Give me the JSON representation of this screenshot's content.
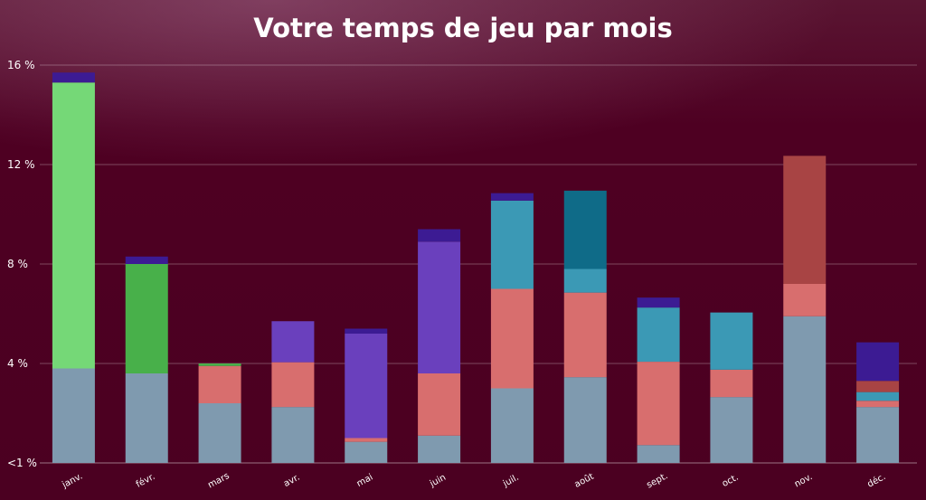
{
  "chart_data": {
    "type": "bar",
    "stacked": true,
    "title": "Votre temps de jeu par mois",
    "xlabel": "",
    "ylabel": "",
    "ylim": [
      0,
      16
    ],
    "y_ticks": [
      {
        "value": 0,
        "label": "<1 %"
      },
      {
        "value": 4,
        "label": "4 %"
      },
      {
        "value": 8,
        "label": "8 %"
      },
      {
        "value": 12,
        "label": "12 %"
      },
      {
        "value": 16,
        "label": "16 %"
      }
    ],
    "grid": true,
    "legend": "none",
    "categories": [
      "janv.",
      "févr.",
      "mars",
      "avr.",
      "mai",
      "juin",
      "juil.",
      "août",
      "sept.",
      "oct.",
      "nov.",
      "déc."
    ],
    "stacks": [
      [
        {
          "value": 3.8,
          "color": "#7f9aaf"
        },
        {
          "value": 11.5,
          "color": "#75d877"
        },
        {
          "value": 0.4,
          "color": "#3c1b93"
        }
      ],
      [
        {
          "value": 3.6,
          "color": "#7f9aaf"
        },
        {
          "value": 4.4,
          "color": "#48b04a"
        },
        {
          "value": 0.3,
          "color": "#3c1b93"
        }
      ],
      [
        {
          "value": 2.4,
          "color": "#7f9aaf"
        },
        {
          "value": 1.5,
          "color": "#d86e6e"
        },
        {
          "value": 0.1,
          "color": "#48b04a"
        }
      ],
      [
        {
          "value": 2.25,
          "color": "#7f9aaf"
        },
        {
          "value": 1.8,
          "color": "#d86e6e"
        },
        {
          "value": 1.65,
          "color": "#6a40bd"
        }
      ],
      [
        {
          "value": 0.85,
          "color": "#7f9aaf"
        },
        {
          "value": 0.15,
          "color": "#d86e6e"
        },
        {
          "value": 4.2,
          "color": "#6a40bd"
        },
        {
          "value": 0.2,
          "color": "#3c1b93"
        }
      ],
      [
        {
          "value": 1.1,
          "color": "#7f9aaf"
        },
        {
          "value": 2.5,
          "color": "#d86e6e"
        },
        {
          "value": 5.3,
          "color": "#6a40bd"
        },
        {
          "value": 0.5,
          "color": "#3c1b93"
        }
      ],
      [
        {
          "value": 3.0,
          "color": "#7f9aaf"
        },
        {
          "value": 4.0,
          "color": "#d86e6e"
        },
        {
          "value": 3.55,
          "color": "#3b99b5"
        },
        {
          "value": 0.3,
          "color": "#3c1b93"
        }
      ],
      [
        {
          "value": 3.45,
          "color": "#7f9aaf"
        },
        {
          "value": 3.4,
          "color": "#d86e6e"
        },
        {
          "value": 0.95,
          "color": "#3b99b5"
        },
        {
          "value": 3.15,
          "color": "#0f6b88"
        }
      ],
      [
        {
          "value": 0.72,
          "color": "#7f9aaf"
        },
        {
          "value": 3.35,
          "color": "#d86e6e"
        },
        {
          "value": 2.18,
          "color": "#3b99b5"
        },
        {
          "value": 0.4,
          "color": "#3c1b93"
        }
      ],
      [
        {
          "value": 2.65,
          "color": "#7f9aaf"
        },
        {
          "value": 1.1,
          "color": "#d86e6e"
        },
        {
          "value": 2.3,
          "color": "#3b99b5"
        }
      ],
      [
        {
          "value": 5.9,
          "color": "#7f9aaf"
        },
        {
          "value": 1.3,
          "color": "#d86e6e"
        },
        {
          "value": 5.15,
          "color": "#a84444"
        }
      ],
      [
        {
          "value": 2.25,
          "color": "#7f9aaf"
        },
        {
          "value": 0.25,
          "color": "#d86e6e"
        },
        {
          "value": 0.35,
          "color": "#3b99b5"
        },
        {
          "value": 0.45,
          "color": "#a84444"
        },
        {
          "value": 1.55,
          "color": "#3c1b93"
        }
      ]
    ]
  }
}
